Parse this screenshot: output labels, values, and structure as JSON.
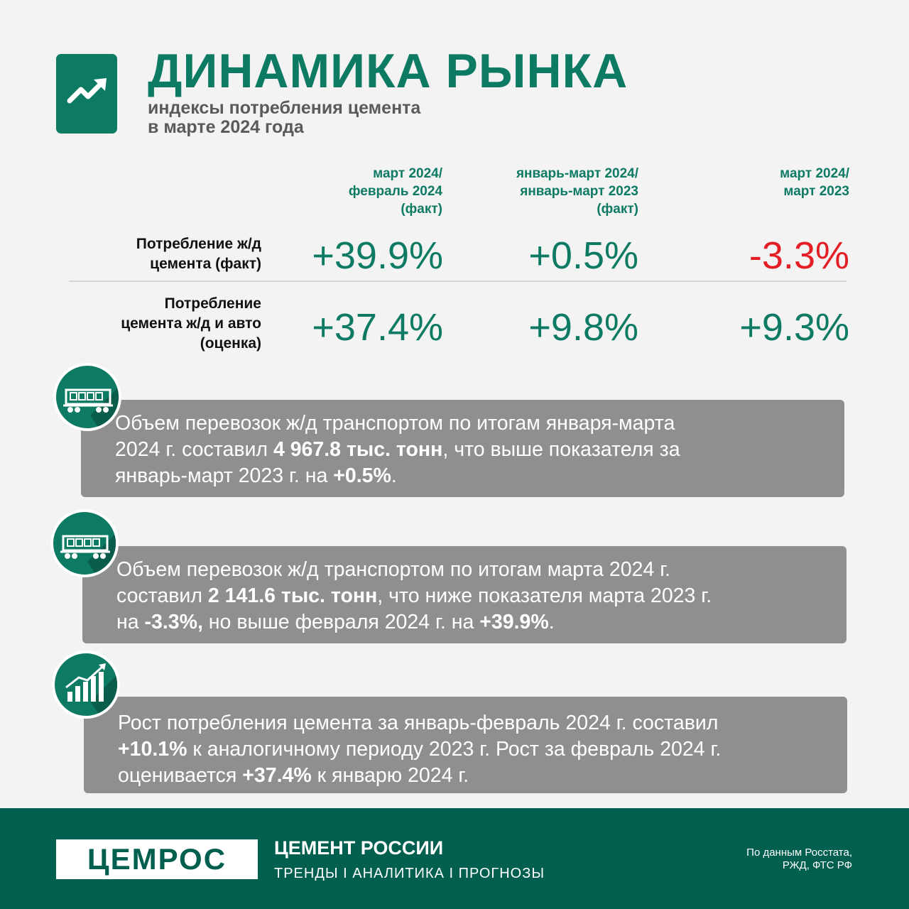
{
  "header": {
    "title": "ДИНАМИКА РЫНКА",
    "subtitle_line1": "индексы потребления цемента",
    "subtitle_line2": "в марте 2024 года",
    "icon": "trend-up-arrow-icon"
  },
  "table": {
    "columns": [
      {
        "line1": "март 2024/",
        "line2": "февраль 2024",
        "line3": "(факт)"
      },
      {
        "line1": "январь-март 2024/",
        "line2": "январь-март 2023",
        "line3": "(факт)"
      },
      {
        "line1": "март 2024/",
        "line2": "март 2023",
        "line3": ""
      }
    ],
    "rows": [
      {
        "label_line1": "Потребление ж/д",
        "label_line2": "цемента (факт)",
        "label_line3": "",
        "values": [
          "+39.9%",
          "+0.5%",
          "-3.3%"
        ]
      },
      {
        "label_line1": "Потребление",
        "label_line2": "цемента ж/д и авто",
        "label_line3": "(оценка)",
        "values": [
          "+37.4%",
          "+9.8%",
          "+9.3%"
        ]
      }
    ],
    "positive_color": "#0d7a63",
    "negative_color": "#e31e24"
  },
  "cards": [
    {
      "icon": "railway-hopper-car-icon",
      "t1": "Объем перевозок ж/д транспортом по итогам января-марта",
      "t2": "2024 г. составил ",
      "b1": " 4 967.8 тыс. тонн",
      "t3": ", что выше показателя за",
      "t4": "январь-март 2023 г. на ",
      "b2": "+0.5%",
      "t5": "."
    },
    {
      "icon": "railway-hopper-car-icon",
      "t1": "Объем перевозок ж/д транспортом по итогам марта 2024 г.",
      "t2": "составил ",
      "b1": " 2 141.6 тыс. тонн",
      "t3": ", что ниже показателя марта 2023 г.",
      "t4": "на ",
      "b2": "-3.3%,",
      "t5": " но выше февраля 2024 г. на ",
      "b3": "+39.9%",
      "t6": "."
    },
    {
      "icon": "growth-bar-chart-icon",
      "t1": "Рост потребления цемента за январь-февраль 2024 г. составил",
      "b1": "+10.1%",
      "t2": " к аналогичному периоду 2023 г. Рост за февраль 2024 г.",
      "t3": "оценивается ",
      "b2": "+37.4%",
      "t4": " к январю 2024 г."
    }
  ],
  "footer": {
    "logo_text": "ЦЕМРОС",
    "brand_name": "ЦЕМЕНТ РОССИИ",
    "tagline": "ТРЕНДЫ I АНАЛИТИКА I ПРОГНОЗЫ",
    "source_line1": "По данным Росстата,",
    "source_line2": "РЖД, ФТС РФ",
    "background": "#005f4e"
  }
}
